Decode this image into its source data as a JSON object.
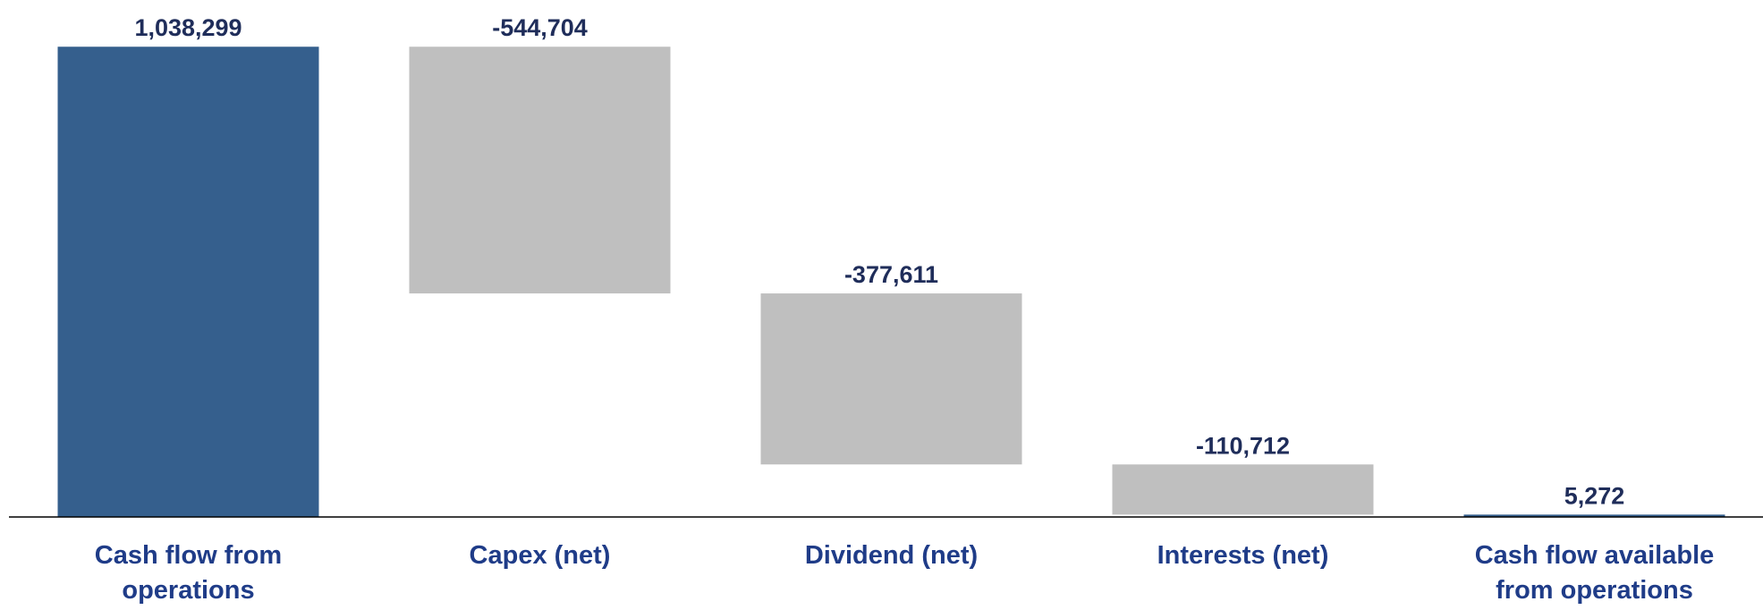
{
  "chart_data": {
    "type": "waterfall",
    "categories": [
      "Cash flow from operations",
      "Capex (net)",
      "Dividend (net)",
      "Interests (net)",
      "Cash flow available from operations"
    ],
    "values": [
      1038299,
      -544704,
      -377611,
      -110712,
      5272
    ],
    "value_labels": [
      "1,038,299",
      "-544,704",
      "-377,611",
      "-110,712",
      "5,272"
    ],
    "bar_types": [
      "total",
      "delta",
      "delta",
      "delta",
      "total"
    ],
    "colors": [
      "#355f8d",
      "#bfbfbf",
      "#bfbfbf",
      "#bfbfbf",
      "#355f8d"
    ],
    "ylim": [
      0,
      1100000
    ]
  }
}
